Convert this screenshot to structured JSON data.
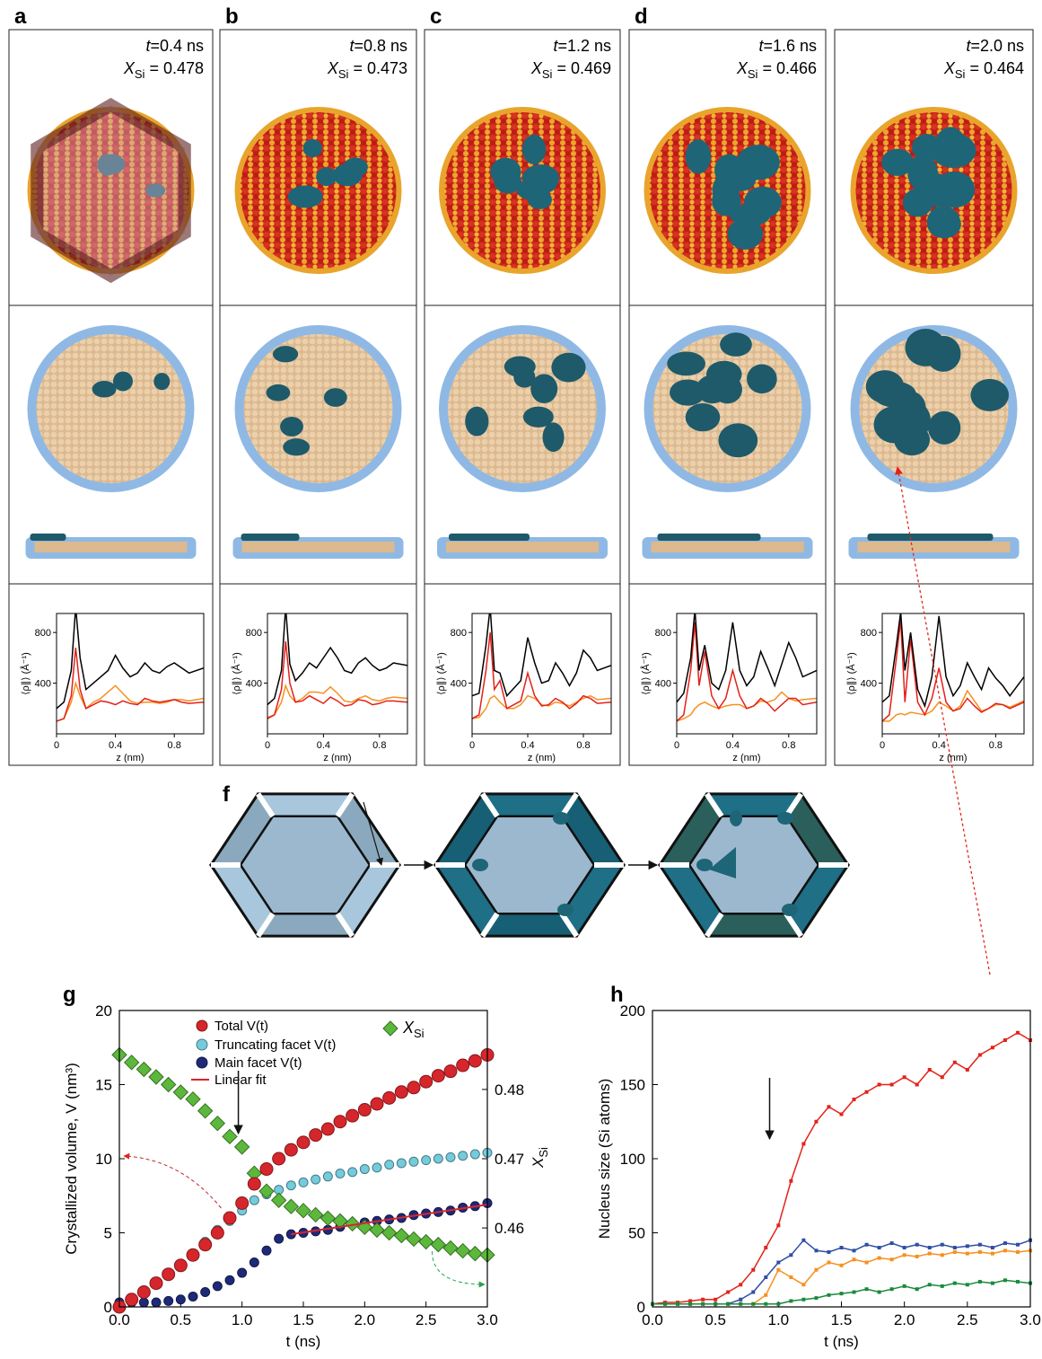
{
  "frame_labels": {
    "time_symbol": "t",
    "fraction_symbol": "X",
    "fraction_sub": "Si",
    "fraction_equals": " = "
  },
  "density_plot": {
    "type": "line",
    "x": [
      0,
      0.05,
      0.1,
      0.13,
      0.16,
      0.2,
      0.25,
      0.3,
      0.35,
      0.4,
      0.45,
      0.5,
      0.55,
      0.6,
      0.65,
      0.7,
      0.75,
      0.8,
      0.85,
      0.9,
      1.0
    ],
    "xlim": [
      0,
      1
    ],
    "xticks": [
      0,
      0.4,
      0.8
    ],
    "ylim": [
      0,
      950
    ],
    "yticks": [
      400,
      800
    ],
    "xlabel": "z (nm)",
    "ylabel": "⟨ρ∥⟩ (Å⁻¹)",
    "colors": [
      "#000000",
      "#e32119",
      "#f7901e"
    ]
  },
  "frames": [
    {
      "label": "a",
      "time": "=0.4 ns",
      "fraction": "0.478",
      "density": [
        [
          200,
          250,
          500,
          1000,
          600,
          350,
          400,
          450,
          500,
          620,
          520,
          450,
          480,
          560,
          500,
          480,
          530,
          560,
          520,
          480,
          520
        ],
        [
          100,
          120,
          300,
          680,
          350,
          200,
          230,
          260,
          250,
          230,
          260,
          240,
          230,
          280,
          260,
          250,
          260,
          270,
          250,
          240,
          250
        ],
        [
          100,
          120,
          250,
          400,
          300,
          200,
          250,
          280,
          330,
          380,
          320,
          260,
          240,
          250,
          250,
          240,
          250,
          270,
          270,
          260,
          280
        ]
      ]
    },
    {
      "label": "b",
      "time": "=0.8 ns",
      "fraction": "0.473",
      "density": [
        [
          230,
          280,
          500,
          1000,
          550,
          420,
          480,
          560,
          520,
          600,
          680,
          600,
          500,
          480,
          560,
          600,
          540,
          500,
          520,
          560,
          540
        ],
        [
          120,
          150,
          350,
          730,
          400,
          250,
          260,
          300,
          270,
          240,
          290,
          260,
          220,
          230,
          270,
          260,
          230,
          240,
          260,
          260,
          250
        ],
        [
          130,
          150,
          250,
          380,
          300,
          250,
          280,
          330,
          330,
          320,
          370,
          320,
          260,
          250,
          280,
          300,
          270,
          260,
          280,
          290,
          280
        ]
      ]
    },
    {
      "label": "c",
      "time": "=1.2 ns",
      "fraction": "0.469",
      "density": [
        [
          300,
          320,
          700,
          1000,
          500,
          480,
          300,
          360,
          420,
          760,
          560,
          400,
          420,
          560,
          480,
          380,
          480,
          660,
          600,
          500,
          540
        ],
        [
          120,
          150,
          500,
          800,
          350,
          420,
          200,
          230,
          260,
          480,
          300,
          220,
          230,
          280,
          250,
          200,
          240,
          300,
          280,
          240,
          250
        ],
        [
          120,
          130,
          200,
          280,
          300,
          250,
          200,
          200,
          230,
          300,
          280,
          230,
          220,
          250,
          240,
          220,
          250,
          280,
          300,
          270,
          280
        ]
      ]
    },
    {
      "label": "d",
      "time": "=1.6 ns",
      "fraction": "0.466",
      "density": [
        [
          250,
          320,
          600,
          980,
          500,
          700,
          400,
          350,
          500,
          880,
          500,
          380,
          450,
          650,
          520,
          380,
          550,
          720,
          600,
          450,
          500
        ],
        [
          100,
          150,
          500,
          880,
          380,
          650,
          300,
          200,
          280,
          500,
          300,
          200,
          220,
          280,
          240,
          180,
          230,
          280,
          280,
          230,
          250
        ],
        [
          100,
          120,
          150,
          200,
          230,
          250,
          220,
          200,
          220,
          230,
          230,
          200,
          220,
          260,
          250,
          270,
          330,
          280,
          260,
          270,
          280
        ]
      ]
    },
    {
      "time": "=2.0 ns",
      "fraction": "0.464",
      "density": [
        [
          250,
          300,
          700,
          960,
          500,
          800,
          350,
          220,
          450,
          930,
          450,
          300,
          380,
          560,
          450,
          350,
          520,
          440,
          380,
          300,
          450
        ],
        [
          100,
          150,
          600,
          900,
          250,
          750,
          250,
          150,
          280,
          520,
          250,
          180,
          200,
          280,
          220,
          170,
          200,
          240,
          230,
          200,
          250
        ],
        [
          100,
          100,
          150,
          160,
          150,
          170,
          160,
          150,
          180,
          250,
          220,
          180,
          220,
          340,
          260,
          180,
          200,
          230,
          230,
          210,
          260
        ]
      ]
    }
  ],
  "schematic": {
    "label": "f"
  },
  "chart_data": [
    {
      "label": "g",
      "type": "scatter",
      "x": [
        0,
        0.1,
        0.2,
        0.3,
        0.4,
        0.5,
        0.6,
        0.7,
        0.8,
        0.9,
        1.0,
        1.1,
        1.2,
        1.3,
        1.4,
        1.5,
        1.6,
        1.7,
        1.8,
        1.9,
        2.0,
        2.1,
        2.2,
        2.3,
        2.4,
        2.5,
        2.6,
        2.7,
        2.8,
        2.9,
        3.0
      ],
      "xlim": [
        0,
        3
      ],
      "xticks": [
        {
          "value": 0,
          "label": "0.0"
        },
        0.5,
        {
          "value": 1,
          "label": "1.0"
        },
        1.5,
        {
          "value": 2,
          "label": "2.0"
        },
        2.5,
        {
          "value": 3,
          "label": "3.0"
        }
      ],
      "ylim": [
        0,
        20
      ],
      "yticks": [
        0,
        5,
        10,
        15,
        20
      ],
      "y2lim": [
        0.4486,
        0.4914
      ],
      "y2ticks": [
        0.46,
        0.47,
        0.48
      ],
      "xlabel": "t (ns)",
      "ylabel": "Crystallized volume, V (nm³)",
      "y2label": "X",
      "y2label_sub": "Si",
      "series": [
        {
          "name": "Total V(t)",
          "color": "#d7262b",
          "marker": "circle",
          "values": [
            0,
            0.5,
            1.0,
            1.6,
            2.2,
            2.8,
            3.5,
            4.2,
            5.0,
            6.0,
            7.0,
            8.3,
            9.3,
            10.0,
            10.6,
            11.1,
            11.6,
            12.0,
            12.5,
            12.9,
            13.3,
            13.7,
            14.1,
            14.5,
            14.8,
            15.2,
            15.6,
            15.9,
            16.3,
            16.6,
            17.0
          ]
        },
        {
          "name": "Truncating facet V(t)",
          "color": "#74cbdc",
          "marker": "circle",
          "values": [
            0,
            0.4,
            0.9,
            1.5,
            2.2,
            2.9,
            3.6,
            4.4,
            5.2,
            5.8,
            6.5,
            7.2,
            7.6,
            7.9,
            8.2,
            8.4,
            8.6,
            8.8,
            9.0,
            9.1,
            9.3,
            9.4,
            9.6,
            9.7,
            9.8,
            9.9,
            10.0,
            10.1,
            10.2,
            10.3,
            10.4
          ]
        },
        {
          "name": "Main facet V(t)",
          "color": "#1e2a78",
          "marker": "circle",
          "values": [
            0.3,
            0.3,
            0.3,
            0.3,
            0.4,
            0.5,
            0.7,
            1.0,
            1.4,
            1.8,
            2.3,
            3.0,
            3.8,
            4.6,
            4.9,
            5.0,
            5.1,
            5.2,
            5.4,
            5.6,
            5.7,
            5.8,
            5.9,
            6.0,
            6.2,
            6.3,
            6.4,
            6.5,
            6.7,
            6.8,
            7.0
          ]
        },
        {
          "name": "Linear fit",
          "color": "#d7262b",
          "marker": "line",
          "x": [
            1.4,
            3.0
          ],
          "values": [
            4.9,
            6.9
          ]
        },
        {
          "name": "X",
          "name_sub": "Si",
          "color": "#5cb83c",
          "marker": "diamond",
          "axis": "y2",
          "values": [
            0.485,
            0.4839,
            0.4829,
            0.4818,
            0.4807,
            0.4796,
            0.4786,
            0.4769,
            0.4751,
            0.4732,
            0.4717,
            0.4679,
            0.4653,
            0.464,
            0.4631,
            0.4625,
            0.4619,
            0.4614,
            0.461,
            0.4606,
            0.4601,
            0.4597,
            0.4593,
            0.4589,
            0.4584,
            0.458,
            0.4576,
            0.4571,
            0.4567,
            0.4563,
            0.4561
          ]
        }
      ]
    },
    {
      "label": "h",
      "type": "line",
      "x": [
        0,
        0.1,
        0.2,
        0.3,
        0.4,
        0.5,
        0.6,
        0.7,
        0.8,
        0.9,
        1.0,
        1.1,
        1.2,
        1.3,
        1.4,
        1.5,
        1.6,
        1.7,
        1.8,
        1.9,
        2.0,
        2.1,
        2.2,
        2.3,
        2.4,
        2.5,
        2.6,
        2.7,
        2.8,
        2.9,
        3.0
      ],
      "xlim": [
        0,
        3
      ],
      "xticks": [
        {
          "value": 0,
          "label": "0.0"
        },
        0.5,
        {
          "value": 1,
          "label": "1.0"
        },
        1.5,
        {
          "value": 2,
          "label": "2.0"
        },
        2.5,
        {
          "value": 3,
          "label": "3.0"
        }
      ],
      "ylim": [
        0,
        200
      ],
      "yticks": [
        0,
        50,
        100,
        150,
        200
      ],
      "xlabel": "t (ns)",
      "ylabel": "Nucleus size (Si atoms)",
      "series": [
        {
          "color": "#e3231b",
          "values": [
            2,
            3,
            3,
            4,
            5,
            5,
            10,
            15,
            25,
            40,
            55,
            85,
            110,
            125,
            135,
            130,
            140,
            145,
            150,
            150,
            155,
            150,
            160,
            155,
            165,
            160,
            170,
            175,
            180,
            185,
            180
          ]
        },
        {
          "color": "#2f4fa3",
          "values": [
            2,
            2,
            2,
            2,
            2,
            2,
            2,
            5,
            10,
            20,
            30,
            35,
            45,
            38,
            37,
            40,
            38,
            42,
            40,
            43,
            40,
            42,
            40,
            42,
            40,
            41,
            42,
            40,
            43,
            42,
            45
          ]
        },
        {
          "color": "#f7901e",
          "values": [
            2,
            2,
            2,
            2,
            2,
            2,
            2,
            2,
            2,
            8,
            25,
            20,
            15,
            25,
            30,
            28,
            32,
            30,
            33,
            32,
            35,
            34,
            36,
            35,
            37,
            36,
            37,
            36,
            38,
            37,
            38
          ]
        },
        {
          "color": "#1a8a3c",
          "values": [
            2,
            2,
            2,
            2,
            2,
            2,
            2,
            2,
            2,
            2,
            2,
            4,
            5,
            6,
            8,
            9,
            10,
            12,
            10,
            12,
            14,
            12,
            15,
            14,
            16,
            15,
            17,
            16,
            18,
            17,
            16
          ]
        }
      ]
    }
  ]
}
